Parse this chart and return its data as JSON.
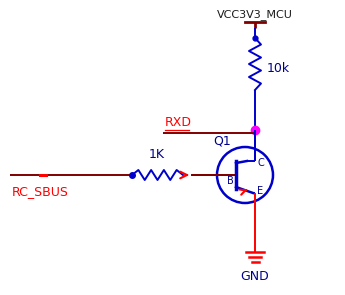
{
  "bg_color": "#ffffff",
  "wire_color_dark": "#800000",
  "wire_color_red": "#ff0000",
  "wire_color_blue": "#0000cd",
  "dot_color": "#ff00ff",
  "text_color_red": "#ff0000",
  "text_color_blue": "#00008b",
  "text_color_dark": "#1a1a1a",
  "vcc_label": "VCC3V3_MCU",
  "gnd_label": "GND",
  "r1_label": "1K",
  "r2_label": "10k",
  "rxd_label": "RXD",
  "q1_label": "Q1",
  "rc_label": "RC_SBUS"
}
